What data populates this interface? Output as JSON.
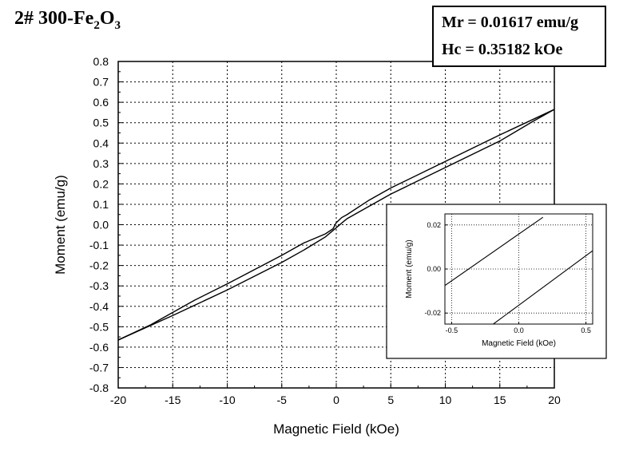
{
  "title": {
    "prefix": "2# 300-Fe",
    "sub1": "2",
    "mid": "O",
    "sub2": "3"
  },
  "info_box": {
    "mr": "Mr = 0.01617 emu/g",
    "hc": "Hc = 0.35182 kOe"
  },
  "chart_data": [
    {
      "type": "line",
      "xlabel": "Magnetic Field (kOe)",
      "ylabel": "Moment (emu/g)",
      "xlim": [
        -20,
        20
      ],
      "ylim": [
        -0.8,
        0.8
      ],
      "x_ticks": [
        -20,
        -15,
        -10,
        -5,
        0,
        5,
        10,
        15,
        20
      ],
      "x_tick_labels": [
        "-20",
        "-15",
        "-10",
        "-5",
        "0",
        "5",
        "10",
        "15",
        "20"
      ],
      "y_ticks": [
        -0.8,
        -0.7,
        -0.6,
        -0.5,
        -0.4,
        -0.3,
        -0.2,
        -0.1,
        0.0,
        0.1,
        0.2,
        0.3,
        0.4,
        0.5,
        0.6,
        0.7,
        0.8
      ],
      "y_tick_labels": [
        "-0.8",
        "-0.7",
        "-0.6",
        "-0.5",
        "-0.4",
        "-0.3",
        "-0.2",
        "-0.1",
        "0.0",
        "0.1",
        "0.2",
        "0.3",
        "0.4",
        "0.5",
        "0.6",
        "0.7",
        "0.8"
      ],
      "grid": true,
      "series": [
        {
          "x": [
            -20,
            -15,
            -10,
            -5,
            -3,
            -1,
            0,
            0.5,
            1,
            3,
            5,
            10,
            15,
            18,
            20
          ],
          "y": [
            -0.565,
            -0.445,
            -0.32,
            -0.185,
            -0.125,
            -0.06,
            -0.015,
            0.008,
            0.03,
            0.09,
            0.15,
            0.28,
            0.41,
            0.505,
            0.565
          ]
        },
        {
          "x": [
            -20,
            -17,
            -13,
            -10,
            -5,
            -3,
            -1,
            -0.3,
            0,
            0.5,
            1,
            3,
            5,
            10,
            15,
            20
          ],
          "y": [
            -0.565,
            -0.49,
            -0.37,
            -0.29,
            -0.15,
            -0.09,
            -0.045,
            -0.02,
            0.01,
            0.035,
            0.05,
            0.12,
            0.18,
            0.31,
            0.44,
            0.565
          ]
        }
      ]
    },
    {
      "type": "line",
      "xlabel": "Magnetic Field (kOe)",
      "ylabel": "Moment (emu/g)",
      "xlim": [
        -0.55,
        0.55
      ],
      "ylim": [
        -0.025,
        0.025
      ],
      "x_ticks": [
        -0.5,
        0.0,
        0.5
      ],
      "x_tick_labels": [
        "-0.5",
        "0.0",
        "0.5"
      ],
      "y_ticks": [
        -0.02,
        0.0,
        0.02
      ],
      "y_tick_labels": [
        "-0.02",
        "0.00",
        "0.02"
      ],
      "grid": true,
      "series": [
        {
          "x": [
            -0.55,
            0.18
          ],
          "y": [
            -0.0075,
            0.0235
          ]
        },
        {
          "x": [
            -0.19,
            0.55
          ],
          "y": [
            -0.025,
            0.0083
          ]
        }
      ]
    }
  ]
}
